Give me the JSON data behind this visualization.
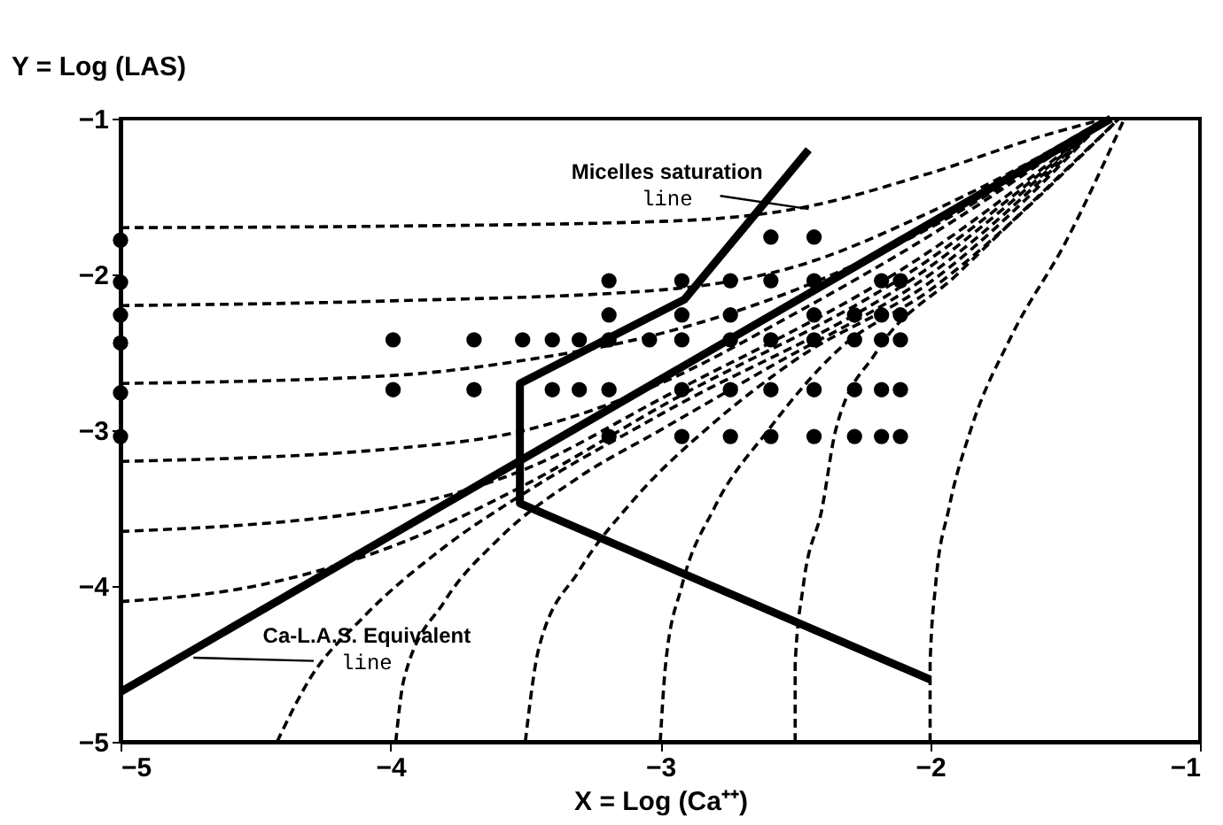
{
  "chart_data": {
    "type": "scatter",
    "xlabel": "X = Log (Ca⁺⁺)",
    "ylabel": "Y = Log (LAS)",
    "xlim": [
      -5,
      -1
    ],
    "ylim": [
      -5,
      -1
    ],
    "xticks": [
      -5,
      -4,
      -3,
      -2,
      -1
    ],
    "yticks": [
      -5,
      -4,
      -3,
      -2,
      -1
    ],
    "grid": false,
    "annotations": [
      {
        "text": "Micelles saturation line",
        "x": -2.45,
        "y": -1.58
      },
      {
        "text": "Ca-L.A.S. Equivalent line",
        "x": -4.73,
        "y": -4.46
      }
    ],
    "series": [
      {
        "marker": "circle",
        "color": "#000000",
        "x": [
          -5,
          -5,
          -5,
          -5,
          -5,
          -5,
          -2.59,
          -2.43,
          -3.19,
          -2.92,
          -2.74,
          -2.59,
          -2.43,
          -2.18,
          -2.11,
          -3.19,
          -2.92,
          -2.74,
          -2.43,
          -2.28,
          -2.18,
          -2.11,
          -3.99,
          -3.69,
          -3.51,
          -3.4,
          -3.3,
          -3.19,
          -3.04,
          -2.92,
          -2.74,
          -2.59,
          -2.43,
          -2.28,
          -2.18,
          -2.11,
          -3.99,
          -3.69,
          -3.4,
          -3.3,
          -3.19,
          -2.92,
          -2.74,
          -2.59,
          -2.43,
          -2.28,
          -2.18,
          -2.11,
          -3.19,
          -2.92,
          -2.74,
          -2.59,
          -2.43,
          -2.28,
          -2.18,
          -2.11
        ],
        "values": [
          -1.78,
          -2.05,
          -2.26,
          -2.44,
          -2.76,
          -3.04,
          -1.76,
          -1.76,
          -2.04,
          -2.04,
          -2.04,
          -2.04,
          -2.04,
          -2.04,
          -2.04,
          -2.26,
          -2.26,
          -2.26,
          -2.26,
          -2.26,
          -2.26,
          -2.26,
          -2.42,
          -2.42,
          -2.42,
          -2.42,
          -2.42,
          -2.42,
          -2.42,
          -2.42,
          -2.42,
          -2.42,
          -2.42,
          -2.42,
          -2.42,
          -2.42,
          -2.74,
          -2.74,
          -2.74,
          -2.74,
          -2.74,
          -2.74,
          -2.74,
          -2.74,
          -2.74,
          -2.74,
          -2.74,
          -2.74,
          -3.04,
          -3.04,
          -3.04,
          -3.04,
          -3.04,
          -3.04,
          -3.04,
          -3.04
        ]
      },
      {
        "type": "line",
        "line_style": "dashed",
        "color": "#000000",
        "x": [
          -5,
          -4,
          -3,
          -2.5,
          -2,
          -1.6,
          -1.35
        ],
        "values": [
          -1.7,
          -1.69,
          -1.66,
          -1.58,
          -1.35,
          -1.12,
          -1.0
        ]
      },
      {
        "type": "line",
        "line_style": "dashed",
        "color": "#000000",
        "x": [
          -5,
          -4,
          -3,
          -2.5,
          -2,
          -1.6,
          -1.35
        ],
        "values": [
          -2.2,
          -2.17,
          -2.1,
          -1.95,
          -1.6,
          -1.25,
          -1.0
        ]
      },
      {
        "type": "line",
        "line_style": "dashed",
        "color": "#000000",
        "x": [
          -5,
          -4,
          -3.5,
          -3,
          -2.5,
          -2,
          -1.35
        ],
        "values": [
          -2.7,
          -2.65,
          -2.55,
          -2.38,
          -2.1,
          -1.7,
          -1.0
        ]
      },
      {
        "type": "line",
        "line_style": "dashed",
        "color": "#000000",
        "x": [
          -5,
          -4,
          -3.5,
          -3,
          -2.5,
          -2,
          -1.35
        ],
        "values": [
          -3.2,
          -3.12,
          -3.0,
          -2.7,
          -2.25,
          -1.75,
          -1.0
        ]
      },
      {
        "type": "line",
        "line_style": "dashed",
        "color": "#000000",
        "x": [
          -5,
          -4,
          -3.5,
          -3,
          -2,
          -1.35
        ],
        "values": [
          -3.65,
          -3.5,
          -3.25,
          -2.8,
          -1.85,
          -1.0
        ]
      },
      {
        "type": "line",
        "line_style": "dashed",
        "color": "#000000",
        "x": [
          -5,
          -4.5,
          -4,
          -3.5,
          -3,
          -2,
          -1.35
        ],
        "values": [
          -4.1,
          -4.0,
          -3.75,
          -3.35,
          -2.85,
          -1.9,
          -1.0
        ]
      },
      {
        "type": "line",
        "line_style": "dashed",
        "color": "#000000",
        "x": [
          -4.42,
          -4.3,
          -4.1,
          -3.8,
          -3.5,
          -3,
          -2,
          -1.35
        ],
        "values": [
          -5,
          -4.6,
          -4.2,
          -3.75,
          -3.4,
          -2.9,
          -1.95,
          -1.0
        ]
      },
      {
        "type": "line",
        "line_style": "dashed",
        "color": "#000000",
        "x": [
          -3.98,
          -3.95,
          -3.8,
          -3.6,
          -3.3,
          -3,
          -2.6,
          -2,
          -1.35
        ],
        "values": [
          -5,
          -4.6,
          -4.1,
          -3.7,
          -3.3,
          -3.0,
          -2.6,
          -2.0,
          -1.0
        ]
      },
      {
        "type": "line",
        "line_style": "dashed",
        "color": "#000000",
        "x": [
          -3.5,
          -3.45,
          -3.3,
          -3.1,
          -2.8,
          -2.5,
          -2,
          -1.35
        ],
        "values": [
          -5,
          -4.4,
          -3.9,
          -3.45,
          -2.95,
          -2.55,
          -2.05,
          -1.0
        ]
      },
      {
        "type": "line",
        "line_style": "dashed",
        "color": "#000000",
        "x": [
          -3.0,
          -2.98,
          -2.92,
          -2.8,
          -2.6,
          -2.35,
          -2,
          -1.3
        ],
        "values": [
          -5,
          -4.5,
          -4.0,
          -3.5,
          -3.0,
          -2.5,
          -2.1,
          -1.0
        ]
      },
      {
        "type": "line",
        "line_style": "dashed",
        "color": "#000000",
        "x": [
          -2.5,
          -2.5,
          -2.47,
          -2.4,
          -2.35,
          -2.2,
          -1.9,
          -1.3
        ],
        "values": [
          -5,
          -4.5,
          -4.0,
          -3.5,
          -3.0,
          -2.5,
          -2.0,
          -1.0
        ]
      },
      {
        "type": "line",
        "line_style": "dashed",
        "color": "#000000",
        "x": [
          -2.0,
          -2.0,
          -1.98,
          -1.93,
          -1.85,
          -1.7,
          -1.5,
          -1.28
        ],
        "values": [
          -5,
          -4.5,
          -4.0,
          -3.5,
          -3.0,
          -2.4,
          -1.8,
          -1.0
        ]
      },
      {
        "type": "line",
        "line_style": "solid",
        "color": "#000000",
        "x": [
          -5,
          -1.33
        ],
        "values": [
          -4.68,
          -1.0
        ]
      },
      {
        "type": "line",
        "line_style": "solid",
        "color": "#000000",
        "x": [
          -2.0,
          -3.52,
          -3.52,
          -2.91,
          -2.45
        ],
        "values": [
          -4.6,
          -3.47,
          -2.7,
          -2.16,
          -1.2
        ]
      }
    ]
  }
}
